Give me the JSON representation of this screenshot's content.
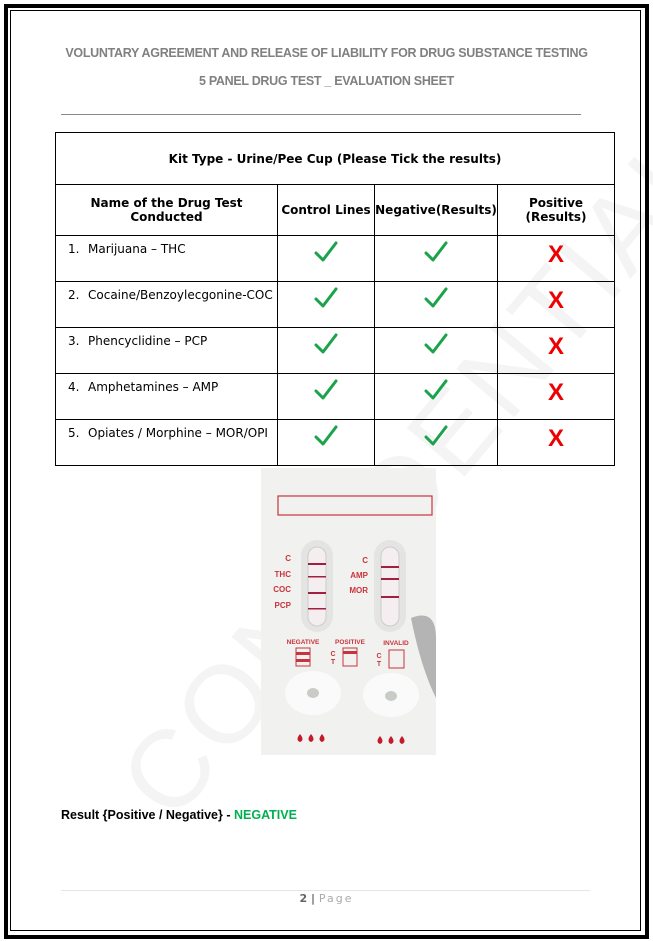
{
  "header": {
    "title": "VOLUNTARY AGREEMENT AND RELEASE OF LIABILITY FOR DRUG SUBSTANCE TESTING",
    "subtitle": "5 PANEL DRUG TEST _ EVALUATION SHEET"
  },
  "table": {
    "kit_type": "Kit Type - Urine/Pee Cup (Please Tick the results)",
    "columns": [
      "Name of the Drug Test Conducted",
      "Control Lines",
      "Negative(Results)",
      "Positive (Results)"
    ],
    "rows": [
      {
        "num": "1.",
        "name": "Marijuana – THC",
        "control": "tick",
        "negative": "tick",
        "positive": "X"
      },
      {
        "num": "2.",
        "name": "Cocaine/Benzoylecgonine-COC",
        "control": "tick",
        "negative": "tick",
        "positive": "X"
      },
      {
        "num": "3.",
        "name": "Phencyclidine – PCP",
        "control": "tick",
        "negative": "tick",
        "positive": "X"
      },
      {
        "num": "4.",
        "name": "Amphetamines – AMP",
        "control": "tick",
        "negative": "tick",
        "positive": "X"
      },
      {
        "num": "5.",
        "name": "Opiates / Morphine – MOR/OPI",
        "control": "tick",
        "negative": "tick",
        "positive": "X"
      }
    ],
    "colors": {
      "tick": "#1aa34a",
      "cross": "#ee0000"
    }
  },
  "photo": {
    "left_labels": [
      "C",
      "THC",
      "COC",
      "PCP"
    ],
    "right_labels": [
      "C",
      "AMP",
      "MOR"
    ],
    "legend": [
      "NEGATIVE",
      "POSITIVE",
      "INVALID"
    ],
    "ct": [
      "C",
      "T"
    ]
  },
  "watermark": "CONFIDENTIAL",
  "result": {
    "label": "Result {Positive / Negative} - ",
    "value": "NEGATIVE"
  },
  "footer": {
    "page_number": "2",
    "sep": " | ",
    "page_label": "Page"
  }
}
